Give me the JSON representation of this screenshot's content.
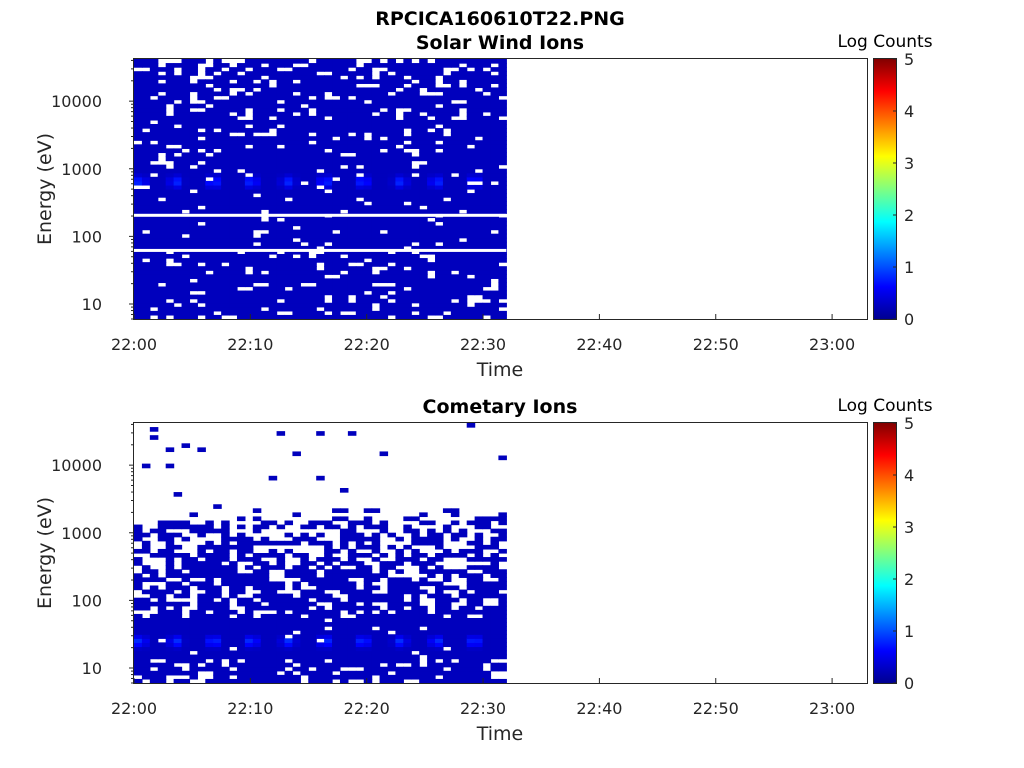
{
  "figure_title": "RPCICA160610T22.PNG",
  "chart_data": [
    {
      "type": "heatmap",
      "title": "Solar Wind Ions",
      "xlabel": "Time",
      "ylabel": "Energy (eV)",
      "x_ticks": [
        "22:00",
        "22:10",
        "22:20",
        "22:30",
        "22:40",
        "22:50",
        "23:00"
      ],
      "x_range": [
        "22:00",
        "23:03"
      ],
      "data_extent": [
        "22:00",
        "22:32"
      ],
      "y_scale": "log",
      "y_ticks": [
        10,
        100,
        1000,
        10000
      ],
      "y_range": [
        6,
        42000
      ],
      "colorbar": {
        "label": "Log Counts",
        "ticks": [
          0,
          1,
          2,
          3,
          4,
          5
        ],
        "range": [
          0,
          5
        ],
        "colormap": "jet"
      },
      "dominant_level": 0.3,
      "peak_band": {
        "energy_eV": 650,
        "level": 0.9,
        "period_min": 3.2
      },
      "gap_energies_eV": [
        205,
        62
      ]
    },
    {
      "type": "heatmap",
      "title": "Cometary Ions",
      "xlabel": "Time",
      "ylabel": "Energy (eV)",
      "x_ticks": [
        "22:00",
        "22:10",
        "22:20",
        "22:30",
        "22:40",
        "22:50",
        "23:00"
      ],
      "x_range": [
        "22:00",
        "23:03"
      ],
      "data_extent": [
        "22:00",
        "22:32"
      ],
      "y_scale": "log",
      "y_ticks": [
        10,
        100,
        1000,
        10000
      ],
      "y_range": [
        6,
        42000
      ],
      "colorbar": {
        "label": "Log Counts",
        "ticks": [
          0,
          1,
          2,
          3,
          4,
          5
        ],
        "range": [
          0,
          5
        ],
        "colormap": "jet"
      },
      "dominant_level": 0.3,
      "peak_band": {
        "energy_eV": 25,
        "level": 0.9,
        "period_min": 3.2
      }
    }
  ]
}
